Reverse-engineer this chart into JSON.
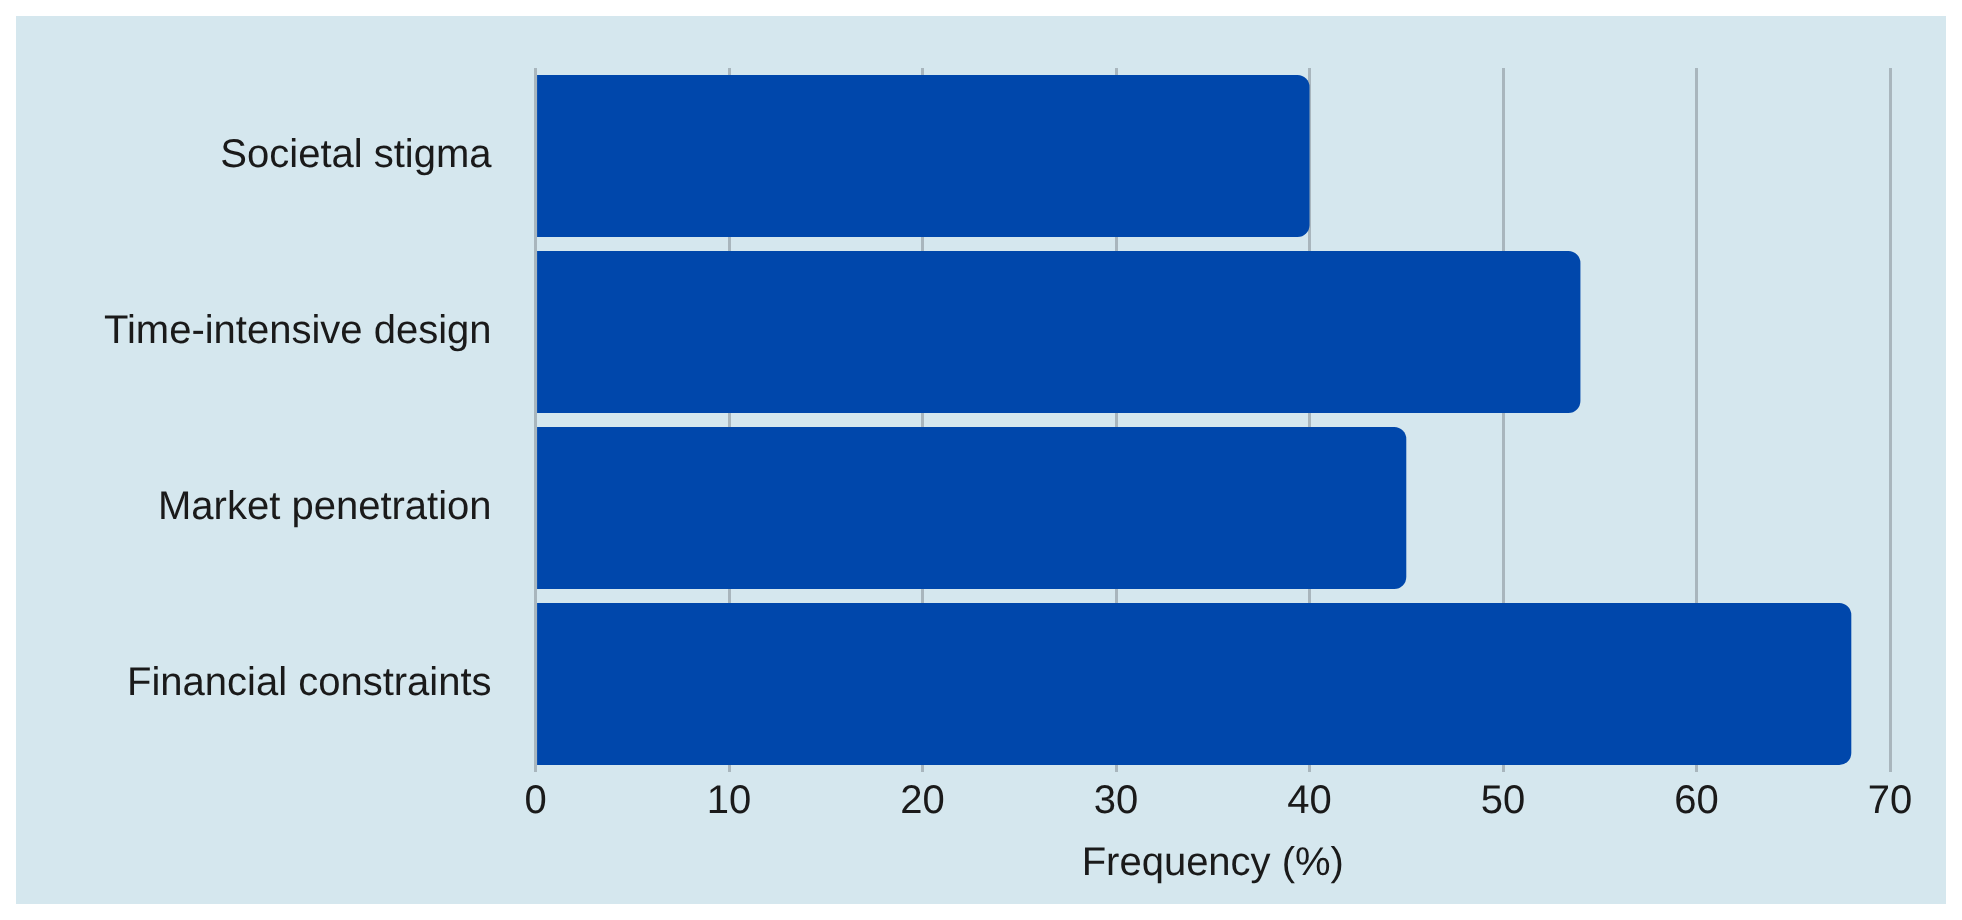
{
  "chart_data": {
    "type": "bar",
    "orientation": "horizontal",
    "xlabel": "Frequency (%)",
    "categories": [
      "Societal stigma",
      "Time-intensive design",
      "Market penetration",
      "Financial constraints"
    ],
    "values": [
      40,
      54,
      45,
      68
    ],
    "color": "#0047ab",
    "xlim": [
      0,
      70
    ],
    "xticks": [
      0,
      10,
      20,
      30,
      40,
      50,
      60,
      70
    ],
    "grid": "x",
    "legend": false
  }
}
